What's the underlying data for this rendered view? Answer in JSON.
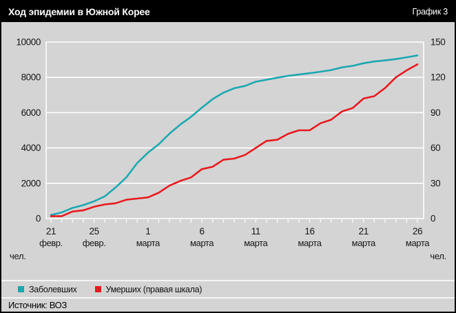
{
  "header": {
    "title": "Ход эпидемии в Южной Корее",
    "tag": "График 3"
  },
  "footer": {
    "source": "Источник: ВОЗ"
  },
  "chart_data": {
    "type": "line",
    "title": "Ход эпидемии в Южной Корее",
    "subtitle": "График 3",
    "grid": true,
    "legend_position": "bottom",
    "x_range_note": "daily points from 21 Feb to 26 Mar",
    "left_axis": {
      "min": 0,
      "max": 10000,
      "step": 2000,
      "unit": "чел."
    },
    "right_axis": {
      "min": 0,
      "max": 150,
      "step": 30,
      "unit": "чел."
    },
    "x_tick_labels": [
      {
        "index": 0,
        "day": "21",
        "month": "февр."
      },
      {
        "index": 4,
        "day": "25",
        "month": "февр."
      },
      {
        "index": 9,
        "day": "1",
        "month": "марта"
      },
      {
        "index": 14,
        "day": "6",
        "month": "марта"
      },
      {
        "index": 19,
        "day": "11",
        "month": "марта"
      },
      {
        "index": 24,
        "day": "16",
        "month": "марта"
      },
      {
        "index": 29,
        "day": "21",
        "month": "марта"
      },
      {
        "index": 34,
        "day": "26",
        "month": "марта"
      }
    ],
    "series": [
      {
        "name": "Заболевших",
        "axis": "left",
        "color": "#1ca8b0",
        "values": [
          204,
          346,
          602,
          763,
          977,
          1261,
          1766,
          2337,
          3150,
          3736,
          4212,
          4812,
          5328,
          5766,
          6284,
          6767,
          7134,
          7382,
          7513,
          7755,
          7869,
          7979,
          8086,
          8162,
          8236,
          8320,
          8413,
          8565,
          8652,
          8799,
          8897,
          8961,
          9037,
          9137,
          9241
        ]
      },
      {
        "name": "Умерших (правая шкала)",
        "axis": "right",
        "color": "#e8191f",
        "values": [
          2,
          2,
          6,
          7,
          10,
          12,
          13,
          16,
          17,
          18,
          22,
          28,
          32,
          35,
          42,
          44,
          50,
          51,
          54,
          60,
          66,
          67,
          72,
          75,
          75,
          81,
          84,
          91,
          94,
          102,
          104,
          111,
          120,
          126,
          131
        ]
      }
    ]
  }
}
